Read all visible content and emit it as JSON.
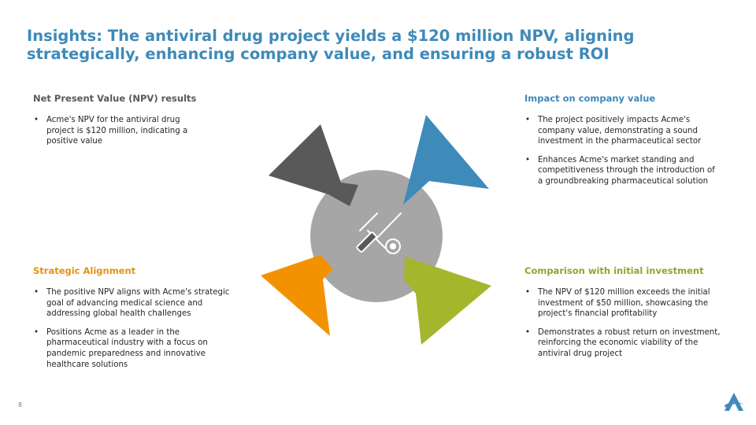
{
  "title": "Insights: The antiviral drug project yields a $120 million NPV, aligning strategically, enhancing company value, and ensuring a robust ROI",
  "sections": {
    "npv": {
      "heading": "Net Present Value (NPV) results",
      "bullets": [
        "Acme's NPV for the antiviral drug project is $120 million, indicating a positive value"
      ]
    },
    "impact": {
      "heading": "Impact on company value",
      "bullets": [
        "The project positively impacts Acme's company value, demonstrating a sound investment in the pharmaceutical sector",
        "Enhances Acme's market standing and competitiveness through the introduction of a groundbreaking pharmaceutical solution"
      ]
    },
    "strategic": {
      "heading": "Strategic Alignment",
      "bullets": [
        "The positive NPV aligns with Acme's strategic goal of advancing medical science and addressing global health challenges",
        "Positions Acme as a leader in the pharmaceutical industry with a focus on pandemic preparedness and innovative healthcare solutions"
      ]
    },
    "comparison": {
      "heading": "Comparison with initial investment",
      "bullets": [
        "The NPV of $120 million exceeds the initial investment of $50 million, showcasing the project's financial profitability",
        "Demonstrates a robust return on investment, reinforcing the economic viability of the antiviral drug project"
      ]
    }
  },
  "graphic": {
    "center_icon": "tools-icon",
    "colors": {
      "center": "#a6a6a6",
      "top_left": "#595959",
      "top_right": "#3e8ab9",
      "bottom_left": "#f39200",
      "bottom_right": "#a4b62c",
      "icon_line": "#ffffff",
      "icon_fill": "#595959"
    }
  },
  "footer": {
    "page_number": "8",
    "logo_icon": "company-logo-icon"
  }
}
